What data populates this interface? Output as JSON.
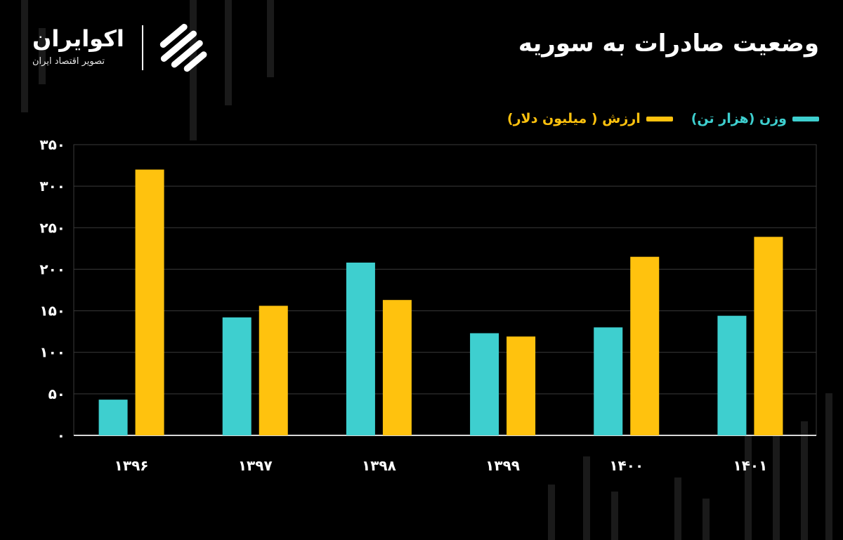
{
  "title": "وضعیت صادرات به سوریه",
  "brand": {
    "name": "اکوایران",
    "subtitle": "تصویر اقتصاد ایران",
    "logo_icon": "ecoiran-logo-icon"
  },
  "colors": {
    "background": "#000000",
    "weight": "#3ECFCF",
    "value": "#FFC20E",
    "grid": "#3a3a3a",
    "text": "#ffffff"
  },
  "chart_data": {
    "type": "bar",
    "title": "وضعیت صادرات به سوریه",
    "categories": [
      "۱۳۹۶",
      "۱۳۹۷",
      "۱۳۹۸",
      "۱۳۹۹",
      "۱۴۰۰",
      "۱۴۰۱"
    ],
    "series": [
      {
        "name": "وزن (هزار تن)",
        "color": "#3ECFCF",
        "values": [
          43,
          142,
          208,
          123,
          130,
          144
        ]
      },
      {
        "name": "ارزش ( میلیون دلار)",
        "color": "#FFC20E",
        "values": [
          320,
          156,
          163,
          119,
          215,
          239
        ]
      }
    ],
    "y_ticks": [
      "۰",
      "۵۰",
      "۱۰۰",
      "۱۵۰",
      "۲۰۰",
      "۲۵۰",
      "۳۰۰",
      "۳۵۰"
    ],
    "ylim": [
      0,
      350
    ],
    "grid": true,
    "legend_position": "top-right"
  }
}
